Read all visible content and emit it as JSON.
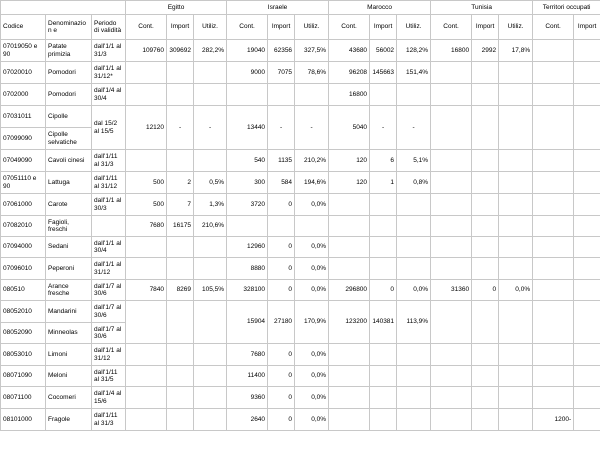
{
  "countries": [
    "Egitto",
    "Israele",
    "Marocco",
    "Tunisia",
    "Territori occupati"
  ],
  "headers": {
    "codice": "Codice",
    "denominazione": "Denominazion e",
    "periodo": "Periodo di validità",
    "cont": "Cont.",
    "import": "Import",
    "utiliz": "Utiliz."
  },
  "rows": [
    {
      "codice": "07019050 e 90",
      "denom": "Patate primizia",
      "periodo": "dall'1/1 al 31/3",
      "vals": [
        [
          "109760",
          "309692",
          "282,2%"
        ],
        [
          "19040",
          "62356",
          "327,5%"
        ],
        [
          "43680",
          "56002",
          "128,2%"
        ],
        [
          "16800",
          "2992",
          "17,8%"
        ],
        [
          "",
          "",
          ""
        ]
      ]
    },
    {
      "codice": "07020010",
      "denom": "Pomodori",
      "periodo": "dall'1/1 al 31/12*",
      "vals": [
        [
          "",
          "",
          ""
        ],
        [
          "9000",
          "7075",
          "78,6%"
        ],
        [
          "96208",
          "145663",
          "151,4%"
        ],
        [
          "",
          "",
          ""
        ],
        [
          "",
          "",
          ""
        ]
      ]
    },
    {
      "codice": "0702000",
      "denom": "Pomodori",
      "periodo": "dall'1/4 al 30/4",
      "vals": [
        [
          "",
          "",
          ""
        ],
        [
          "",
          "",
          ""
        ],
        [
          "16800",
          "",
          ""
        ],
        [
          "",
          "",
          ""
        ],
        [
          "",
          "",
          ""
        ]
      ]
    },
    {
      "codice": "07031011",
      "denom": "Cipolle",
      "periodo": "dal 15/2 al 15/5",
      "vals": [
        [
          "12120",
          "-",
          "-"
        ],
        [
          "13440",
          "-",
          "-"
        ],
        [
          "5040",
          "-",
          "-"
        ],
        [
          "",
          "",
          ""
        ],
        [
          "",
          "",
          ""
        ]
      ]
    },
    {
      "codice": "07099090",
      "denom": "Cipolle selvatiche"
    },
    {
      "codice": "07049090",
      "denom": "Cavoli cinesi",
      "periodo": "dall'1/11 al 31/3",
      "vals": [
        [
          "",
          "",
          ""
        ],
        [
          "540",
          "1135",
          "210,2%"
        ],
        [
          "120",
          "6",
          "5,1%"
        ],
        [
          "",
          "",
          ""
        ],
        [
          "",
          "",
          ""
        ]
      ]
    },
    {
      "codice": "07051110 e 90",
      "denom": "Lattuga",
      "periodo": "dall'1/11 al 31/12",
      "vals": [
        [
          "500",
          "2",
          "0,5%"
        ],
        [
          "300",
          "584",
          "194,6%"
        ],
        [
          "120",
          "1",
          "0,8%"
        ],
        [
          "",
          "",
          ""
        ],
        [
          "",
          "",
          ""
        ]
      ]
    },
    {
      "codice": "07061000",
      "denom": "Carote",
      "periodo": "dall'1/1 al 30/3",
      "vals": [
        [
          "500",
          "7",
          "1,3%"
        ],
        [
          "3720",
          "0",
          "0,0%"
        ],
        [
          "",
          "",
          ""
        ],
        [
          "",
          "",
          ""
        ],
        [
          "",
          "",
          ""
        ]
      ]
    },
    {
      "codice": "07082010",
      "denom": "Fagioli, freschi",
      "periodo": "",
      "vals": [
        [
          "7680",
          "16175",
          "210,6%"
        ],
        [
          "",
          "",
          ""
        ],
        [
          "",
          "",
          ""
        ],
        [
          "",
          "",
          ""
        ],
        [
          "",
          "",
          ""
        ]
      ]
    },
    {
      "codice": "07094000",
      "denom": "Sedani",
      "periodo": "dall'1/1 al 30/4",
      "vals": [
        [
          "",
          "",
          ""
        ],
        [
          "12960",
          "0",
          "0,0%"
        ],
        [
          "",
          "",
          ""
        ],
        [
          "",
          "",
          ""
        ],
        [
          "",
          "",
          ""
        ]
      ]
    },
    {
      "codice": "07096010",
      "denom": "Peperoni",
      "periodo": "dall'1/1 al 31/12",
      "vals": [
        [
          "",
          "",
          ""
        ],
        [
          "8880",
          "0",
          "0,0%"
        ],
        [
          "",
          "",
          ""
        ],
        [
          "",
          "",
          ""
        ],
        [
          "",
          "",
          ""
        ]
      ]
    },
    {
      "codice": "080510",
      "denom": "Arance fresche",
      "periodo": "dall'1/7 al 30/6",
      "vals": [
        [
          "7840",
          "8269",
          "105,5%"
        ],
        [
          "328100",
          "0",
          "0,0%"
        ],
        [
          "296800",
          "0",
          "0,0%"
        ],
        [
          "31360",
          "0",
          "0,0%"
        ],
        [
          "",
          "",
          ""
        ]
      ]
    },
    {
      "codice": "08052010",
      "denom": "Mandarini",
      "periodo": "dall'1/7 al 30/6",
      "vals": [
        [
          "",
          "",
          ""
        ],
        [
          "15904",
          "27180",
          "170,9%"
        ],
        [
          "123200",
          "140381",
          "113,9%"
        ],
        [
          "",
          "",
          ""
        ],
        [
          "",
          "",
          ""
        ]
      ]
    },
    {
      "codice": "08052090",
      "denom": "Minneolas",
      "periodo": "dall'1/7 al 30/6"
    },
    {
      "codice": "08053010",
      "denom": "Limoni",
      "periodo": "dall'1/1 al 31/12",
      "vals": [
        [
          "",
          "",
          ""
        ],
        [
          "7680",
          "0",
          "0,0%"
        ],
        [
          "",
          "",
          ""
        ],
        [
          "",
          "",
          ""
        ],
        [
          "",
          "",
          ""
        ]
      ]
    },
    {
      "codice": "08071090",
      "denom": "Meloni",
      "periodo": "dall'1/11 al 31/5",
      "vals": [
        [
          "",
          "",
          ""
        ],
        [
          "11400",
          "0",
          "0,0%"
        ],
        [
          "",
          "",
          ""
        ],
        [
          "",
          "",
          ""
        ],
        [
          "",
          "",
          ""
        ]
      ]
    },
    {
      "codice": "08071100",
      "denom": "Cocomeri",
      "periodo": "dall'1/4 al 15/6",
      "vals": [
        [
          "",
          "",
          ""
        ],
        [
          "9360",
          "0",
          "0,0%"
        ],
        [
          "",
          "",
          ""
        ],
        [
          "",
          "",
          ""
        ],
        [
          "",
          "",
          ""
        ]
      ]
    },
    {
      "codice": "08101000",
      "denom": "Fragole",
      "periodo": "dall'1/11 al 31/3",
      "vals": [
        [
          "",
          "",
          ""
        ],
        [
          "2640",
          "0",
          "0,0%"
        ],
        [
          "",
          "",
          ""
        ],
        [
          "",
          "",
          ""
        ],
        [
          "1200-",
          "",
          ""
        ]
      ]
    }
  ]
}
